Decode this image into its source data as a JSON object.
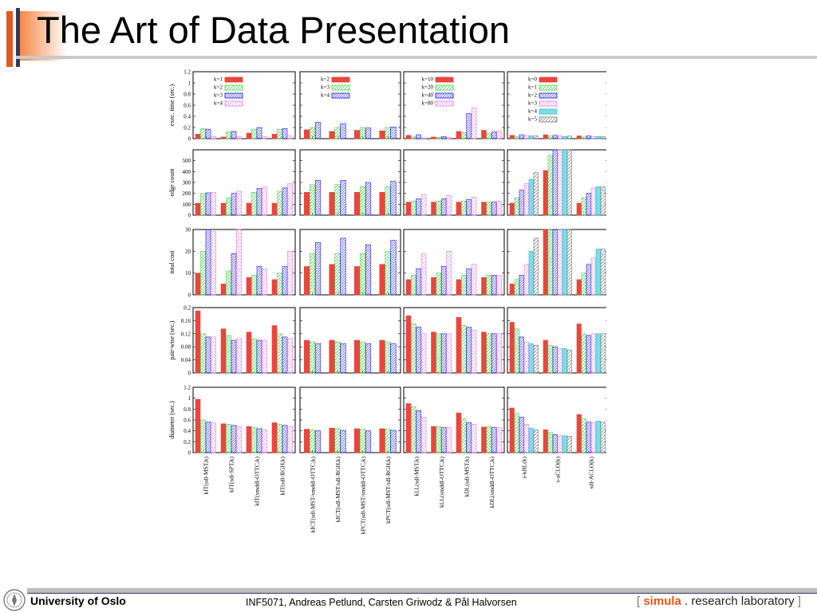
{
  "slide": {
    "title": "The Art of Data Presentation",
    "footer_org": "University of Oslo",
    "footer_course": "INF5071, Andreas Petlund, Carsten Griwodz & Pål Halvorsen",
    "logo_open": "[",
    "logo_brand": "simula",
    "logo_rest": ". research laboratory",
    "logo_close": "]"
  },
  "colors": {
    "accent_orange": "#e3591c",
    "accent_navy": "#2e3b5e",
    "series": [
      "#e8463f",
      "#4bd04b",
      "#1a1aee",
      "#e37ae8",
      "#29c7d1",
      "#888888"
    ]
  },
  "chart_data": {
    "type": "bar",
    "layout": "5 rows x 4 columns of grouped bar panels",
    "categories": [
      [
        "kIT(sdl-MST,k)",
        "kIT(sdl-SPT,k)",
        "kIT(smddl-OTTC,k)",
        "kIT(sdl-RGH,k)"
      ],
      [
        "kICT(sdl-MST/smddl-OTTC,k)",
        "kICT(sdl-MST/sdl-RGH,k)",
        "kPCT(sdl-MST/smddl-OTTC,k)",
        "kPCT(sdl-MST/sdl-RGH,k)"
      ],
      [
        "kLL(sdl-MST,k)",
        "kLL(smddl-OTTC,k)",
        "kDL(sdl-MST,k)",
        "kDL(smddl-OTTC,k)"
      ],
      [
        "s-kBL(k)",
        "s-aCLO(k)",
        "sdl-ACLO(k)"
      ]
    ],
    "legends": [
      [
        "k=1",
        "k=2",
        "k=3",
        "k=4"
      ],
      [
        "k=2",
        "k=3",
        "k=4"
      ],
      [
        "k=10",
        "k=20",
        "k=40",
        "k=80"
      ],
      [
        "k=0",
        "k=1",
        "k=2",
        "k=3",
        "k=4",
        "k=5"
      ]
    ],
    "rows": [
      {
        "ylabel": "exec. time (sec.)",
        "ylim": [
          0,
          1.2
        ],
        "ticks": [
          "0",
          "0.2",
          "0.4",
          "0.6",
          "0.8",
          "1",
          "1.2"
        ],
        "panels": [
          [
            [
              0.08,
              0.18,
              0.17,
              0.04
            ],
            [
              0.03,
              0.12,
              0.13,
              0.04
            ],
            [
              0.1,
              0.17,
              0.2,
              0.04
            ],
            [
              0.08,
              0.17,
              0.18,
              0.05
            ]
          ],
          [
            [
              0.16,
              0.2,
              0.29
            ],
            [
              0.13,
              0.2,
              0.27
            ],
            [
              0.15,
              0.2,
              0.19
            ],
            [
              0.14,
              0.2,
              0.21
            ]
          ],
          [
            [
              0.06,
              0.03,
              0.07,
              0.01
            ],
            [
              0.03,
              0.02,
              0.04,
              0.02
            ],
            [
              0.13,
              0.11,
              0.45,
              0.55
            ],
            [
              0.15,
              0.1,
              0.12,
              0.14
            ]
          ],
          [
            [
              0.06,
              0.04,
              0.07,
              0.06,
              0.05,
              0.05
            ],
            [
              0.07,
              0.05,
              0.06,
              0.05,
              0.04,
              0.05
            ],
            [
              0.05,
              0.03,
              0.05,
              0.04,
              0.04,
              0.04
            ]
          ]
        ]
      },
      {
        "ylabel": "edge count",
        "ylim": [
          0,
          600
        ],
        "ticks": [
          "0",
          "100",
          "200",
          "300",
          "400",
          "500"
        ],
        "panels": [
          [
            [
              110,
              200,
              205,
              210
            ],
            [
              110,
              160,
              200,
              220
            ],
            [
              110,
              210,
              245,
              260
            ],
            [
              110,
              220,
              250,
              290
            ]
          ],
          [
            [
              210,
              280,
              320
            ],
            [
              210,
              280,
              320
            ],
            [
              210,
              260,
              300
            ],
            [
              210,
              260,
              310
            ]
          ],
          [
            [
              120,
              130,
              150,
              190
            ],
            [
              120,
              130,
              150,
              180
            ],
            [
              120,
              130,
              145,
              165
            ],
            [
              120,
              120,
              120,
              130
            ]
          ],
          [
            [
              110,
              160,
              230,
              290,
              330,
              390
            ],
            [
              410,
              550,
              600,
              600,
              600,
              600
            ],
            [
              110,
              160,
              200,
              250,
              260,
              260
            ]
          ]
        ]
      },
      {
        "ylabel": "total cost",
        "ylim": [
          0,
          30
        ],
        "ticks": [
          "0",
          "10",
          "20",
          "30"
        ],
        "panels": [
          [
            [
              10,
              20,
              30,
              29
            ],
            [
              5,
              11,
              19,
              30
            ],
            [
              8,
              9,
              13,
              12
            ],
            [
              7,
              10,
              13,
              20
            ]
          ],
          [
            [
              13,
              19,
              24
            ],
            [
              14,
              19,
              26
            ],
            [
              13,
              19,
              23
            ],
            [
              14,
              20,
              25
            ]
          ],
          [
            [
              7,
              9,
              12,
              19
            ],
            [
              8,
              10,
              13,
              20
            ],
            [
              7,
              9,
              12,
              14
            ],
            [
              8,
              9,
              9,
              9
            ]
          ],
          [
            [
              5,
              7,
              9,
              14,
              20,
              26
            ],
            [
              30,
              30,
              30,
              30,
              30,
              30
            ],
            [
              7,
              10,
              14,
              17,
              21,
              21
            ]
          ]
        ]
      },
      {
        "ylabel": "pair-wise (sec.)",
        "ylim": [
          0,
          0.2
        ],
        "ticks": [
          "0",
          "0.04",
          "0.08",
          "0.12",
          "0.16",
          "0.2"
        ],
        "panels": [
          [
            [
              0.19,
              0.12,
              0.11,
              0.11
            ],
            [
              0.135,
              0.115,
              0.1,
              0.105
            ],
            [
              0.125,
              0.105,
              0.1,
              0.1
            ],
            [
              0.145,
              0.12,
              0.11,
              0.105
            ]
          ],
          [
            [
              0.1,
              0.095,
              0.09
            ],
            [
              0.1,
              0.095,
              0.09
            ],
            [
              0.1,
              0.095,
              0.09
            ],
            [
              0.1,
              0.095,
              0.09
            ]
          ],
          [
            [
              0.175,
              0.15,
              0.14,
              0.12
            ],
            [
              0.125,
              0.12,
              0.12,
              0.12
            ],
            [
              0.17,
              0.145,
              0.14,
              0.13
            ],
            [
              0.125,
              0.12,
              0.12,
              0.12
            ]
          ],
          [
            [
              0.155,
              0.135,
              0.11,
              0.095,
              0.09,
              0.085
            ],
            [
              0.1,
              0.085,
              0.08,
              0.075,
              0.075,
              0.07
            ],
            [
              0.15,
              0.12,
              0.115,
              0.12,
              0.12,
              0.12
            ]
          ]
        ]
      },
      {
        "ylabel": "diameter (sec.)",
        "ylim": [
          0,
          1.2
        ],
        "ticks": [
          "0",
          "0.2",
          "0.4",
          "0.6",
          "0.8",
          "1",
          "1.2"
        ],
        "panels": [
          [
            [
              0.98,
              0.6,
              0.56,
              0.55
            ],
            [
              0.53,
              0.52,
              0.5,
              0.48
            ],
            [
              0.48,
              0.46,
              0.44,
              0.42
            ],
            [
              0.55,
              0.52,
              0.5,
              0.48
            ]
          ],
          [
            [
              0.43,
              0.42,
              0.4
            ],
            [
              0.45,
              0.44,
              0.41
            ],
            [
              0.44,
              0.43,
              0.4
            ],
            [
              0.44,
              0.43,
              0.41
            ]
          ],
          [
            [
              0.9,
              0.84,
              0.77,
              0.65
            ],
            [
              0.48,
              0.48,
              0.46,
              0.46
            ],
            [
              0.73,
              0.62,
              0.55,
              0.52
            ],
            [
              0.47,
              0.48,
              0.46,
              0.46
            ]
          ],
          [
            [
              0.82,
              0.72,
              0.65,
              0.52,
              0.45,
              0.42
            ],
            [
              0.42,
              0.37,
              0.33,
              0.31,
              0.31,
              0.3
            ],
            [
              0.7,
              0.62,
              0.56,
              0.55,
              0.58,
              0.56
            ]
          ]
        ]
      }
    ]
  }
}
